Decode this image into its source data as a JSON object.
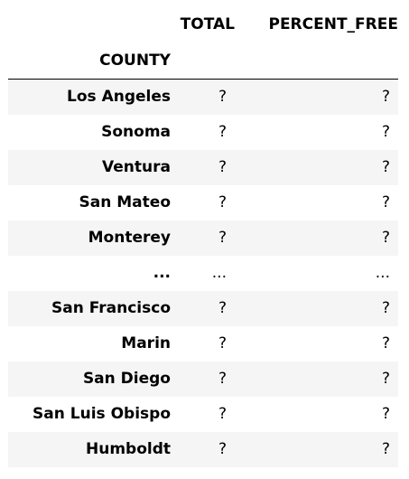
{
  "table": {
    "columns": [
      "TOTAL",
      "PERCENT_FREE"
    ],
    "index_name": "COUNTY",
    "rows": [
      {
        "county": "Los Angeles",
        "total": "?",
        "percent_free": "?"
      },
      {
        "county": "Sonoma",
        "total": "?",
        "percent_free": "?"
      },
      {
        "county": "Ventura",
        "total": "?",
        "percent_free": "?"
      },
      {
        "county": "San Mateo",
        "total": "?",
        "percent_free": "?"
      },
      {
        "county": "Monterey",
        "total": "?",
        "percent_free": "?"
      },
      {
        "county": "...",
        "total": "...",
        "percent_free": "..."
      },
      {
        "county": "San Francisco",
        "total": "?",
        "percent_free": "?"
      },
      {
        "county": "Marin",
        "total": "?",
        "percent_free": "?"
      },
      {
        "county": "San Diego",
        "total": "?",
        "percent_free": "?"
      },
      {
        "county": "San Luis Obispo",
        "total": "?",
        "percent_free": "?"
      },
      {
        "county": "Humboldt",
        "total": "?",
        "percent_free": "?"
      }
    ]
  }
}
